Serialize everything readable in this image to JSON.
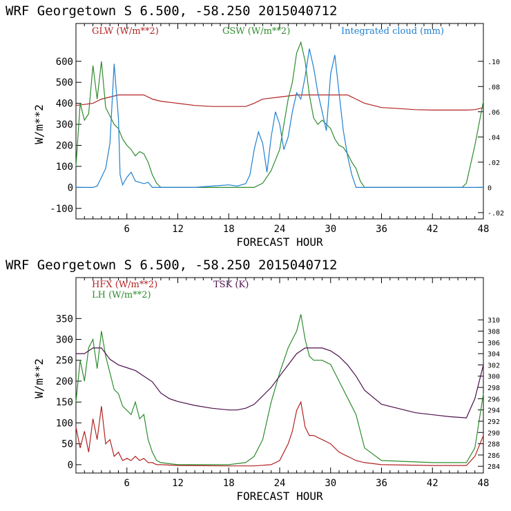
{
  "colors": {
    "glw": "#b22222",
    "gsw": "#2e8b2e",
    "cloud": "#1e7fd0",
    "hfx": "#b22222",
    "lh": "#2e8b2e",
    "tsk": "#4b0f4b"
  },
  "chart_data": [
    {
      "type": "line",
      "title": "WRF   Georgetown S   6.500, -58.250  2015040712",
      "xlabel": "FORECAST HOUR",
      "ylabel": "W/m**2",
      "xlim": [
        0,
        48
      ],
      "ylim": [
        -150,
        780
      ],
      "y2lim": [
        -0.025,
        0.13
      ],
      "xticks": [
        "6",
        "12",
        "18",
        "24",
        "30",
        "36",
        "42",
        "48"
      ],
      "yticks": [
        "-100",
        "0",
        "100",
        "200",
        "300",
        "400",
        "500",
        "600"
      ],
      "y2ticks": [
        "-.02",
        "0",
        ".02",
        ".04",
        ".06",
        ".08",
        ".10"
      ],
      "series": [
        {
          "name": "GLW (W/m**2)",
          "axis": "left",
          "x": [
            0,
            1,
            2,
            3,
            4,
            5,
            6,
            7,
            8,
            9,
            10,
            12,
            14,
            16,
            18,
            20,
            21,
            22,
            24,
            25,
            26,
            27,
            28,
            29,
            30,
            31,
            32,
            33,
            34,
            36,
            38,
            40,
            42,
            44,
            46,
            47,
            48
          ],
          "values": [
            390,
            395,
            400,
            420,
            430,
            440,
            440,
            440,
            440,
            420,
            410,
            400,
            390,
            385,
            385,
            385,
            400,
            420,
            430,
            435,
            440,
            440,
            440,
            440,
            440,
            440,
            440,
            420,
            400,
            380,
            375,
            370,
            368,
            368,
            368,
            370,
            380
          ]
        },
        {
          "name": "GSW (W/m**2)",
          "axis": "left",
          "x": [
            0,
            0.5,
            1,
            1.5,
            2,
            2.5,
            3,
            3.5,
            4,
            4.5,
            5,
            5.5,
            6,
            6.5,
            7,
            7.5,
            8,
            8.5,
            9,
            9.5,
            10,
            12,
            18,
            21,
            22,
            23,
            24,
            25,
            25.5,
            26,
            26.5,
            27,
            27.5,
            28,
            28.5,
            29,
            29.5,
            30,
            30.5,
            31,
            31.5,
            32,
            32.5,
            33,
            33.5,
            34,
            36,
            42,
            45.5,
            46,
            47,
            48
          ],
          "values": [
            100,
            400,
            320,
            350,
            580,
            420,
            600,
            380,
            340,
            300,
            280,
            230,
            200,
            180,
            150,
            170,
            160,
            120,
            60,
            20,
            0,
            0,
            0,
            0,
            20,
            80,
            180,
            420,
            500,
            640,
            690,
            600,
            440,
            330,
            300,
            320,
            300,
            280,
            230,
            200,
            190,
            160,
            120,
            90,
            30,
            0,
            0,
            0,
            0,
            20,
            200,
            410
          ]
        },
        {
          "name": "Integrated cloud (mm)",
          "axis": "right",
          "x": [
            0,
            1,
            2,
            2.5,
            3,
            3.5,
            4,
            4.5,
            5,
            5.2,
            5.5,
            6,
            6.5,
            7,
            7.5,
            8,
            8.5,
            9,
            10,
            12,
            14,
            16,
            18,
            19,
            20,
            20.5,
            21,
            21.5,
            22,
            22.5,
            23,
            23.5,
            24,
            24.5,
            25,
            25.5,
            26,
            26.5,
            27,
            27.5,
            28,
            28.5,
            29,
            29.5,
            30,
            30.5,
            31,
            31.5,
            32,
            32.5,
            33,
            34,
            36,
            42,
            48
          ],
          "values": [
            0,
            0,
            0,
            0.001,
            0.008,
            0.015,
            0.035,
            0.098,
            0.055,
            0.01,
            0.002,
            0.008,
            0.012,
            0.005,
            0.004,
            0.003,
            0.004,
            0,
            0,
            0,
            0,
            0.001,
            0.002,
            0.001,
            0.003,
            0.01,
            0.03,
            0.044,
            0.035,
            0.012,
            0.04,
            0.06,
            0.05,
            0.03,
            0.04,
            0.06,
            0.075,
            0.07,
            0.088,
            0.11,
            0.095,
            0.075,
            0.06,
            0.045,
            0.09,
            0.105,
            0.075,
            0.045,
            0.025,
            0.01,
            0,
            0,
            0,
            0,
            0
          ]
        }
      ]
    },
    {
      "type": "line",
      "title": "WRF   Georgetown S   6.500, -58.250  2015040712",
      "xlabel": "FORECAST HOUR",
      "ylabel": "W/m**2",
      "xlim": [
        0,
        48
      ],
      "ylim": [
        -20,
        448
      ],
      "y2lim": [
        282.8,
        317.5
      ],
      "xticks": [
        "6",
        "12",
        "18",
        "24",
        "30",
        "36",
        "42",
        "48"
      ],
      "yticks": [
        "0",
        "50",
        "100",
        "150",
        "200",
        "250",
        "300",
        "350"
      ],
      "y2ticks": [
        "284",
        "286",
        "288",
        "290",
        "292",
        "294",
        "296",
        "298",
        "300",
        "302",
        "304",
        "306",
        "308",
        "310"
      ],
      "series": [
        {
          "name": "HFX (W/m**2)",
          "axis": "left",
          "x": [
            0,
            0.5,
            1,
            1.5,
            2,
            2.5,
            3,
            3.5,
            4,
            4.5,
            5,
            5.5,
            6,
            6.5,
            7,
            7.5,
            8,
            8.5,
            9,
            9.5,
            10,
            12,
            18,
            21,
            23,
            24,
            24.5,
            25,
            25.5,
            26,
            26.5,
            27,
            27.5,
            28,
            29,
            30,
            31,
            32,
            33,
            34,
            36,
            42,
            46,
            47,
            48
          ],
          "values": [
            90,
            40,
            80,
            30,
            110,
            60,
            140,
            50,
            60,
            20,
            30,
            10,
            15,
            10,
            20,
            10,
            15,
            5,
            5,
            0,
            0,
            -2,
            -3,
            -3,
            0,
            10,
            30,
            50,
            80,
            130,
            150,
            90,
            70,
            70,
            60,
            50,
            30,
            20,
            10,
            5,
            0,
            -2,
            -2,
            20,
            70
          ]
        },
        {
          "name": "LH  (W/m**2)",
          "axis": "left",
          "x": [
            0,
            0.5,
            1,
            1.5,
            2,
            2.5,
            3,
            3.5,
            4,
            4.5,
            5,
            5.5,
            6,
            6.5,
            7,
            7.5,
            8,
            8.5,
            9,
            9.5,
            10,
            12,
            18,
            20,
            21,
            22,
            23,
            24,
            25,
            26,
            26.5,
            27,
            27.5,
            28,
            29,
            30,
            31,
            32,
            33,
            34,
            36,
            42,
            46,
            47,
            48
          ],
          "values": [
            150,
            250,
            200,
            280,
            300,
            230,
            320,
            260,
            220,
            180,
            170,
            140,
            130,
            120,
            150,
            110,
            120,
            60,
            30,
            10,
            5,
            0,
            0,
            5,
            20,
            60,
            150,
            220,
            280,
            320,
            360,
            300,
            260,
            250,
            250,
            240,
            200,
            160,
            120,
            40,
            10,
            5,
            5,
            40,
            170
          ]
        },
        {
          "name": "TSK (K)",
          "axis": "right",
          "x": [
            0,
            1,
            2,
            3,
            4,
            5,
            6,
            7,
            8,
            9,
            10,
            11,
            12,
            14,
            16,
            18,
            19,
            20,
            21,
            22,
            23,
            24,
            25,
            26,
            27,
            28,
            29,
            30,
            31,
            32,
            33,
            34,
            36,
            40,
            44,
            46,
            47,
            48
          ],
          "values": [
            304,
            304,
            305,
            305,
            303,
            302,
            301.5,
            301,
            300,
            299,
            297,
            296,
            295.5,
            294.8,
            294.3,
            294,
            294,
            294.3,
            295,
            296.5,
            298,
            300,
            302,
            304,
            305,
            305,
            305,
            304.5,
            303.5,
            302,
            300,
            297.5,
            295,
            293.5,
            292.8,
            292.6,
            296,
            302
          ]
        }
      ]
    }
  ],
  "legend": {
    "top": {
      "glw": "GLW (W/m**2)",
      "gsw": "GSW (W/m**2)",
      "cloud": "Integrated cloud (mm)"
    },
    "bottom": {
      "hfx": "HFX (W/m**2)",
      "lh": "LH  (W/m**2)",
      "tsk": "TSK (K)"
    }
  }
}
